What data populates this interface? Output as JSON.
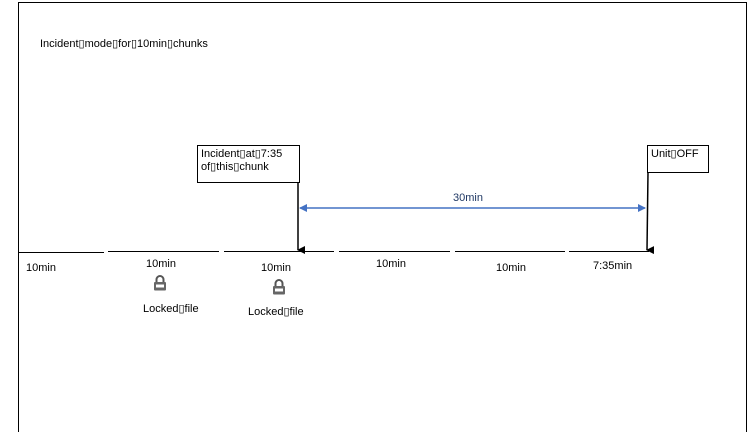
{
  "title": "Incident▯mode▯for▯10min▯chunks",
  "callouts": {
    "incident": "Incident▯at▯7:35\nof▯this▯chunk",
    "unit_off": "Unit▯OFF"
  },
  "duration_label": "30min",
  "segments": [
    {
      "label": "10min"
    },
    {
      "label": "10min",
      "note": "Locked▯file"
    },
    {
      "label": "10min",
      "note": "Locked▯file"
    },
    {
      "label": "10min"
    },
    {
      "label": "10min"
    },
    {
      "label": "7:35min"
    }
  ],
  "colors": {
    "arrow": "#4472c4",
    "line": "#000000"
  },
  "icons": [
    "lock-icon"
  ]
}
